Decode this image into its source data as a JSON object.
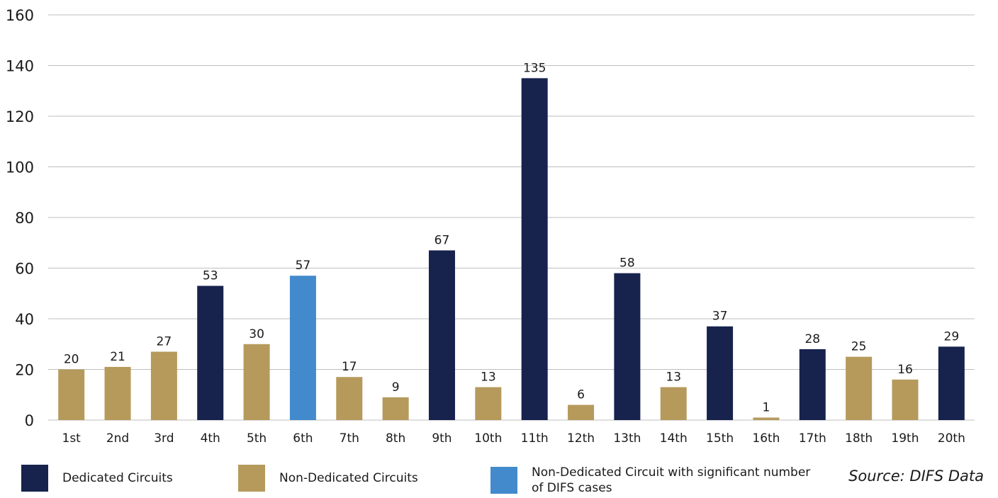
{
  "chart_data": {
    "type": "bar",
    "categories": [
      "1st",
      "2nd",
      "3rd",
      "4th",
      "5th",
      "6th",
      "7th",
      "8th",
      "9th",
      "10th",
      "11th",
      "12th",
      "13th",
      "14th",
      "15th",
      "16th",
      "17th",
      "18th",
      "19th",
      "20th"
    ],
    "values": [
      20,
      21,
      27,
      53,
      30,
      57,
      17,
      9,
      67,
      13,
      135,
      6,
      58,
      13,
      37,
      1,
      28,
      25,
      16,
      29
    ],
    "groups": [
      "non_dedicated",
      "non_dedicated",
      "non_dedicated",
      "dedicated",
      "non_dedicated",
      "significant",
      "non_dedicated",
      "non_dedicated",
      "dedicated",
      "non_dedicated",
      "dedicated",
      "non_dedicated",
      "dedicated",
      "non_dedicated",
      "dedicated",
      "non_dedicated",
      "dedicated",
      "non_dedicated",
      "non_dedicated",
      "dedicated"
    ],
    "data_labels": [
      "20",
      "21",
      "27",
      "53",
      "30",
      "57",
      "17",
      "9",
      "67",
      "13",
      "135",
      "6",
      "58",
      "13",
      "37",
      "1",
      "28",
      "25",
      "16",
      "29"
    ],
    "ylim": [
      0,
      160
    ],
    "yticks": [
      "0",
      "20",
      "40",
      "60",
      "80",
      "100",
      "120",
      "140",
      "160"
    ],
    "grid": true,
    "legend_position": "bottom",
    "title": "",
    "xlabel": "",
    "ylabel": ""
  },
  "legend": {
    "dedicated": {
      "label": "Dedicated Circuits",
      "color": "#17224d"
    },
    "non_dedicated": {
      "label": "Non-Dedicated Circuits",
      "color": "#b59a5c"
    },
    "significant": {
      "label": "Non-Dedicated Circuit with significant number of DIFS cases",
      "color": "#428acb"
    }
  },
  "source": "Source: DIFS Data",
  "colors": {
    "grid": "#bfbfbf"
  }
}
